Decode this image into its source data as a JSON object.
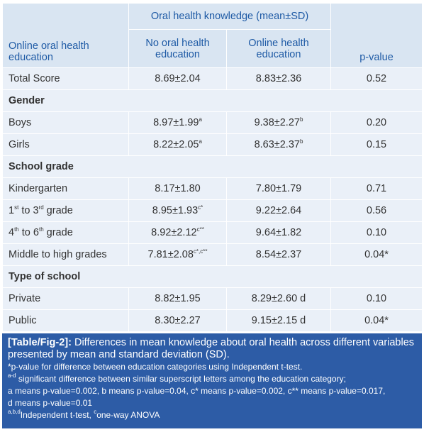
{
  "table": {
    "header": {
      "row_label": "Online oral health education",
      "group": "Oral health knowledge (mean±SD)",
      "columns": [
        "No oral health education",
        "Online health education"
      ],
      "p": "p-value"
    },
    "rows": [
      [
        "Total Score",
        "8.69±2.04",
        "8.83±2.36",
        "0.52"
      ],
      [
        "Gender"
      ],
      [
        "Boys",
        [
          "8.97±1.99",
          {
            "sup": "a"
          }
        ],
        [
          "9.38±2.27",
          {
            "sup": "b"
          }
        ],
        "0.20"
      ],
      [
        "Girls",
        [
          "8.22±2.05",
          {
            "sup": "a"
          }
        ],
        [
          "8.63±2.37",
          {
            "sup": "b"
          }
        ],
        "0.15"
      ],
      [
        "School grade"
      ],
      [
        "Kindergarten",
        "8.17±1.80",
        "7.80±1.79",
        "0.71"
      ],
      [
        [
          "1",
          {
            "sup": "st"
          },
          " to 3",
          {
            "sup": "rd"
          },
          " grade"
        ],
        [
          "8.95±1.93",
          {
            "sup": "c*"
          }
        ],
        "9.22±2.64",
        "0.56"
      ],
      [
        [
          "4",
          {
            "sup": "th"
          },
          " to 6",
          {
            "sup": "th"
          },
          " grade"
        ],
        [
          "8.92±2.12",
          {
            "sup": "c**"
          }
        ],
        "9.64±1.82",
        "0.10"
      ],
      [
        "Middle to high grades",
        [
          "7.81±2.08",
          {
            "sup": "c*,c**"
          }
        ],
        "8.54±2.37",
        "0.04*"
      ],
      [
        "Type of school"
      ],
      [
        "Private",
        "8.82±1.95",
        "8.29±2.60 d",
        "0.10"
      ],
      [
        "Public",
        "8.30±2.27",
        "9.15±2.15 d",
        "0.04*"
      ]
    ]
  },
  "caption": {
    "label": "[Table/Fig-2]:",
    "text": " Differences in mean knowledge about oral health across different variables presented by mean and standard deviation (SD).",
    "notes": [
      "*p-value for difference between education categories using Independent t-test.",
      [
        {
          "sup": "a-d"
        },
        " significant difference between similar superscript letters among the education category;"
      ],
      "a means p-value=0.002, b means p-value=0.04, c* means p-value=0.002, c** means p-value=0.017,",
      "d means p-value=0.01",
      [
        {
          "sup": "a,b,d"
        },
        "Independent t-test, ",
        {
          "sup": "c"
        },
        "one-way ANOVA"
      ]
    ]
  }
}
